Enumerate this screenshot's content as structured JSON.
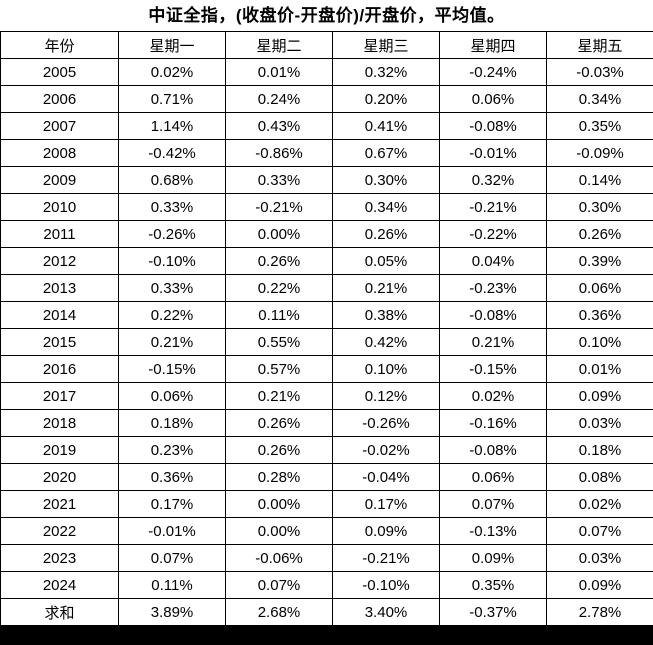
{
  "title": "中证全指，(收盘价-开盘价)/开盘价，平均值。",
  "chart_data": {
    "type": "table",
    "columns": [
      "年份",
      "星期一",
      "星期二",
      "星期三",
      "星期四",
      "星期五"
    ],
    "rows": [
      {
        "label": "2005",
        "values": [
          "0.02%",
          "0.01%",
          "0.32%",
          "-0.24%",
          "-0.03%"
        ]
      },
      {
        "label": "2006",
        "values": [
          "0.71%",
          "0.24%",
          "0.20%",
          "0.06%",
          "0.34%"
        ]
      },
      {
        "label": "2007",
        "values": [
          "1.14%",
          "0.43%",
          "0.41%",
          "-0.08%",
          "0.35%"
        ]
      },
      {
        "label": "2008",
        "values": [
          "-0.42%",
          "-0.86%",
          "0.67%",
          "-0.01%",
          "-0.09%"
        ]
      },
      {
        "label": "2009",
        "values": [
          "0.68%",
          "0.33%",
          "0.30%",
          "0.32%",
          "0.14%"
        ]
      },
      {
        "label": "2010",
        "values": [
          "0.33%",
          "-0.21%",
          "0.34%",
          "-0.21%",
          "0.30%"
        ]
      },
      {
        "label": "2011",
        "values": [
          "-0.26%",
          "0.00%",
          "0.26%",
          "-0.22%",
          "0.26%"
        ]
      },
      {
        "label": "2012",
        "values": [
          "-0.10%",
          "0.26%",
          "0.05%",
          "0.04%",
          "0.39%"
        ]
      },
      {
        "label": "2013",
        "values": [
          "0.33%",
          "0.22%",
          "0.21%",
          "-0.23%",
          "0.06%"
        ]
      },
      {
        "label": "2014",
        "values": [
          "0.22%",
          "0.11%",
          "0.38%",
          "-0.08%",
          "0.36%"
        ]
      },
      {
        "label": "2015",
        "values": [
          "0.21%",
          "0.55%",
          "0.42%",
          "0.21%",
          "0.10%"
        ]
      },
      {
        "label": "2016",
        "values": [
          "-0.15%",
          "0.57%",
          "0.10%",
          "-0.15%",
          "0.01%"
        ]
      },
      {
        "label": "2017",
        "values": [
          "0.06%",
          "0.21%",
          "0.12%",
          "0.02%",
          "0.09%"
        ]
      },
      {
        "label": "2018",
        "values": [
          "0.18%",
          "0.26%",
          "-0.26%",
          "-0.16%",
          "0.03%"
        ]
      },
      {
        "label": "2019",
        "values": [
          "0.23%",
          "0.26%",
          "-0.02%",
          "-0.08%",
          "0.18%"
        ]
      },
      {
        "label": "2020",
        "values": [
          "0.36%",
          "0.28%",
          "-0.04%",
          "0.06%",
          "0.08%"
        ]
      },
      {
        "label": "2021",
        "values": [
          "0.17%",
          "0.00%",
          "0.17%",
          "0.07%",
          "0.02%"
        ]
      },
      {
        "label": "2022",
        "values": [
          "-0.01%",
          "0.00%",
          "0.09%",
          "-0.13%",
          "0.07%"
        ]
      },
      {
        "label": "2023",
        "values": [
          "0.07%",
          "-0.06%",
          "-0.21%",
          "0.09%",
          "0.03%"
        ]
      },
      {
        "label": "2024",
        "values": [
          "0.11%",
          "0.07%",
          "-0.10%",
          "0.35%",
          "0.09%"
        ]
      },
      {
        "label": "求和",
        "values": [
          "3.89%",
          "2.68%",
          "3.40%",
          "-0.37%",
          "2.78%"
        ]
      }
    ]
  },
  "colors": {
    "background": "#ffffff",
    "gridline": "#000000",
    "text": "#000000",
    "bottom_bar": "#000000"
  }
}
